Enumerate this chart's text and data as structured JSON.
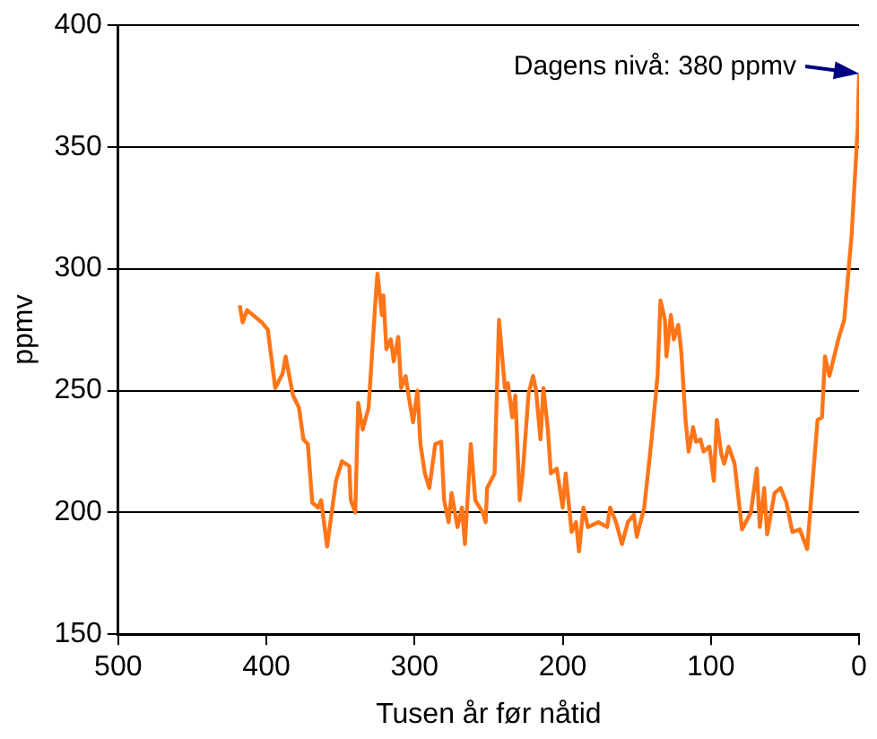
{
  "chart_data": {
    "type": "line",
    "xlabel": "Tusen år før nåtid",
    "ylabel": "ppmv",
    "x": [
      418,
      416,
      413,
      403,
      399,
      394,
      389,
      387,
      382,
      378,
      375,
      372,
      369,
      365,
      363,
      359,
      353,
      349,
      344,
      343,
      340,
      338,
      335,
      331,
      327,
      326,
      325,
      322,
      321,
      319,
      316,
      314,
      311,
      309,
      306,
      304,
      301,
      298,
      296,
      293,
      290,
      286,
      282,
      280,
      277,
      275,
      271,
      268,
      266,
      262,
      259,
      254,
      252,
      251,
      246,
      243,
      239,
      237,
      234,
      232,
      229,
      227,
      223,
      220,
      218,
      215,
      213,
      210,
      208,
      204,
      200,
      198,
      194,
      191,
      189,
      186,
      183,
      176,
      170,
      168,
      164,
      160,
      156,
      152,
      150,
      145,
      140,
      136,
      134,
      131,
      130,
      127,
      125,
      122,
      120,
      117,
      115,
      112,
      110,
      107,
      105,
      101,
      98,
      96,
      93,
      91,
      88,
      84,
      79,
      73,
      69,
      67,
      64,
      62,
      57,
      53,
      49,
      45,
      40,
      35,
      28,
      25,
      23,
      20,
      14,
      10,
      5,
      1,
      0
    ],
    "series": [
      {
        "color": "#ff7518",
        "values": [
          285,
          278,
          283,
          278,
          275,
          251,
          257,
          264,
          248,
          243,
          230,
          228,
          204,
          202,
          205,
          186,
          213,
          221,
          219,
          205,
          200,
          245,
          234,
          243,
          281,
          290,
          298,
          281,
          289,
          267,
          271,
          262,
          272,
          251,
          256,
          248,
          237,
          250,
          228,
          216,
          210,
          228,
          229,
          205,
          196,
          208,
          194,
          202,
          187,
          228,
          205,
          200,
          196,
          210,
          216,
          279,
          251,
          253,
          239,
          248,
          205,
          216,
          249,
          256,
          250,
          230,
          251,
          234,
          216,
          218,
          202,
          216,
          192,
          196,
          184,
          202,
          194,
          196,
          194,
          202,
          196,
          187,
          196,
          199,
          190,
          202,
          230,
          256,
          287,
          279,
          264,
          281,
          271,
          277,
          266,
          237,
          225,
          235,
          229,
          230,
          225,
          227,
          213,
          238,
          224,
          220,
          227,
          220,
          193,
          200,
          218,
          194,
          210,
          191,
          208,
          210,
          204,
          192,
          193,
          185,
          238,
          239,
          264,
          256,
          271,
          279,
          314,
          357,
          380
        ]
      }
    ],
    "xlim": [
      500,
      0
    ],
    "xticks": [
      500,
      400,
      300,
      200,
      100,
      0
    ],
    "ylim": [
      150,
      400
    ],
    "yticks": [
      150,
      200,
      250,
      300,
      350,
      400
    ],
    "grid": "y",
    "legend": false,
    "marker": "none",
    "line_style": "solid",
    "annotations": [
      {
        "text": "Dagens nivå: 380 ppmv",
        "x": 0,
        "y": 380
      }
    ]
  }
}
